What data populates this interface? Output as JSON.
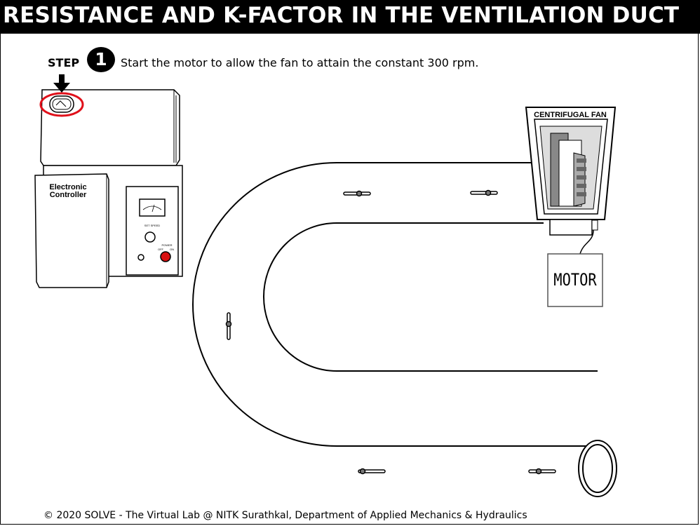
{
  "header": {
    "title": "RESISTANCE AND K-FACTOR IN THE VENTILATION DUCT"
  },
  "step": {
    "label": "STEP",
    "number": "1",
    "instruction": "Start the motor to allow the fan to attain the constant 300 rpm."
  },
  "apparatus": {
    "controller_label_line1": "Electronic",
    "controller_label_line2": "Controller",
    "panel_set_speed": "SET SPEED",
    "panel_power": "POWER",
    "panel_off": "OFF",
    "panel_on": "ON",
    "fan_label": "CENTRIFUGAL FAN",
    "motor_label": "MOTOR"
  },
  "colors": {
    "highlight": "#e0101a",
    "power_button": "#d81010"
  },
  "footer": {
    "text": "© 2020 SOLVE - The Virtual Lab @ NITK Surathkal, Department of Applied Mechanics & Hydraulics"
  }
}
